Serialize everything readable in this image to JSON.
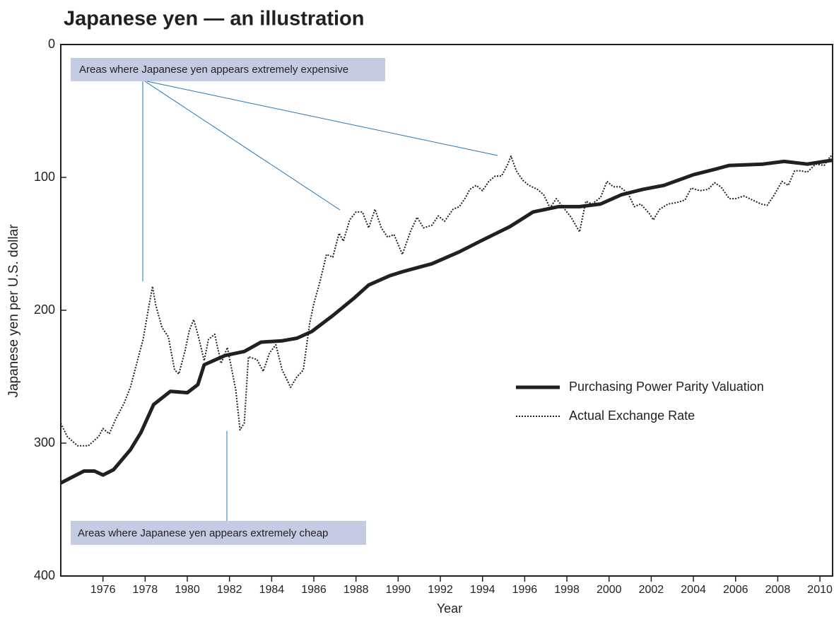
{
  "chart_data": {
    "type": "line",
    "title": "Japanese yen — an illustration",
    "x_label": "Year",
    "y_label": "Japanese yen per U.S. dollar",
    "xlim": [
      1974.0,
      2010.6
    ],
    "ylim": [
      0,
      400
    ],
    "y_inverted": true,
    "xticks": [
      1976,
      1978,
      1980,
      1982,
      1984,
      1986,
      1988,
      1990,
      1992,
      1994,
      1996,
      1998,
      2000,
      2002,
      2004,
      2006,
      2008,
      2010
    ],
    "yticks": [
      0,
      100,
      200,
      300,
      400
    ],
    "legend": "right",
    "annotations": [
      "Areas where Japanese yen appears extremely expensive",
      "Areas where Japanese yen appears extremely cheap"
    ],
    "series": [
      {
        "name": "Purchasing Power Parity Valuation",
        "color": "#231f20",
        "dash": false,
        "x": [
          1974.0,
          1975.1,
          1975.6,
          1976.0,
          1976.5,
          1977.3,
          1977.8,
          1978.4,
          1979.2,
          1980.0,
          1980.5,
          1980.8,
          1981.8,
          1982.7,
          1983.5,
          1984.5,
          1985.2,
          1985.9,
          1986.9,
          1987.9,
          1988.6,
          1989.6,
          1990.2,
          1990.9,
          1991.6,
          1992.9,
          1993.9,
          1995.3,
          1996.4,
          1997.6,
          1998.6,
          1999.6,
          2000.6,
          2001.6,
          2002.6,
          2004.0,
          2005.0,
          2005.7,
          2007.3,
          2008.3,
          2009.4,
          2010.6
        ],
        "values": [
          330,
          321,
          321,
          324,
          320,
          305,
          292,
          271,
          261,
          262,
          256,
          241,
          234,
          231,
          224,
          223,
          221,
          216,
          204,
          191,
          181,
          174,
          171,
          168,
          165,
          156,
          148,
          137,
          126,
          122,
          122,
          120,
          113,
          109,
          106,
          98,
          94,
          91,
          90,
          88,
          90,
          87
        ]
      },
      {
        "name": "Actual Exchange Rate",
        "color": "#231f20",
        "dash": true,
        "x": [
          1974.0,
          1974.3,
          1974.8,
          1975.3,
          1975.8,
          1976.0,
          1976.3,
          1976.6,
          1977.0,
          1977.3,
          1977.6,
          1977.9,
          1978.2,
          1978.35,
          1978.5,
          1978.8,
          1979.1,
          1979.4,
          1979.6,
          1979.9,
          1980.1,
          1980.3,
          1980.5,
          1980.8,
          1981.0,
          1981.3,
          1981.6,
          1981.9,
          1982.3,
          1982.5,
          1982.7,
          1982.9,
          1983.3,
          1983.6,
          1983.9,
          1984.2,
          1984.5,
          1984.9,
          1985.2,
          1985.5,
          1985.8,
          1986.0,
          1986.3,
          1986.6,
          1986.9,
          1987.2,
          1987.4,
          1987.7,
          1988.0,
          1988.3,
          1988.6,
          1988.9,
          1989.2,
          1989.5,
          1989.8,
          1990.2,
          1990.6,
          1990.9,
          1991.2,
          1991.6,
          1991.9,
          1992.2,
          1992.6,
          1992.9,
          1993.2,
          1993.4,
          1993.7,
          1994.0,
          1994.3,
          1994.6,
          1994.9,
          1995.2,
          1995.35,
          1995.6,
          1995.9,
          1996.2,
          1996.6,
          1996.9,
          1997.2,
          1997.5,
          1997.8,
          1998.2,
          1998.6,
          1998.9,
          1999.2,
          1999.6,
          1999.9,
          2000.2,
          2000.5,
          2000.9,
          2001.2,
          2001.5,
          2001.9,
          2002.1,
          2002.4,
          2002.8,
          2003.2,
          2003.6,
          2003.9,
          2004.3,
          2004.7,
          2005.0,
          2005.3,
          2005.7,
          2006.0,
          2006.4,
          2006.8,
          2007.2,
          2007.5,
          2007.8,
          2008.2,
          2008.5,
          2008.8,
          2009.1,
          2009.4,
          2009.8,
          2010.2,
          2010.5,
          2010.6
        ],
        "values": [
          285,
          295,
          302,
          302,
          295,
          289,
          293,
          282,
          270,
          258,
          240,
          222,
          195,
          182,
          196,
          213,
          220,
          245,
          248,
          230,
          215,
          207,
          218,
          238,
          222,
          218,
          240,
          228,
          260,
          290,
          285,
          235,
          237,
          246,
          232,
          226,
          245,
          258,
          250,
          245,
          210,
          195,
          178,
          158,
          160,
          142,
          148,
          132,
          126,
          126,
          138,
          124,
          138,
          145,
          143,
          158,
          140,
          130,
          138,
          136,
          129,
          133,
          124,
          122,
          115,
          109,
          106,
          110,
          103,
          99,
          99,
          90,
          84,
          95,
          102,
          106,
          109,
          113,
          123,
          116,
          122,
          130,
          141,
          118,
          120,
          115,
          103,
          107,
          107,
          112,
          122,
          120,
          127,
          132,
          124,
          120,
          119,
          117,
          108,
          110,
          109,
          104,
          107,
          116,
          116,
          114,
          117,
          120,
          121,
          114,
          103,
          106,
          95,
          95,
          96,
          90,
          91,
          84,
          85
        ]
      }
    ]
  }
}
